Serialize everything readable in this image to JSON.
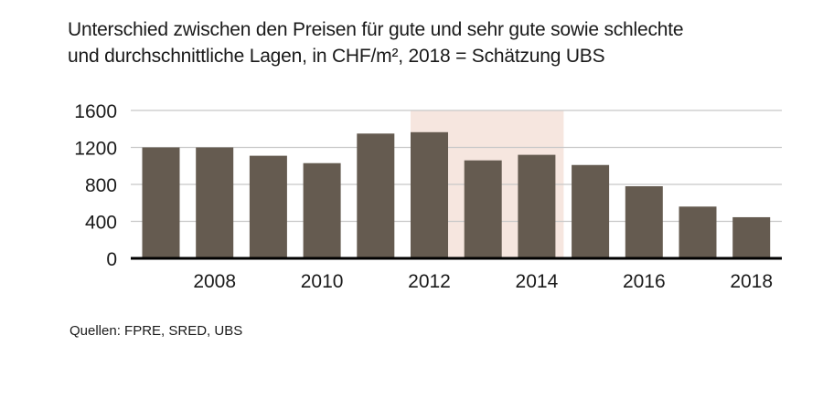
{
  "chart_data": {
    "type": "bar",
    "title_line1": "Unterschied zwischen den Preisen für gute und sehr gute sowie schlechte",
    "title_line2": "und durchschnittliche Lagen, in CHF/m², 2018 = Schätzung UBS",
    "categories": [
      "2007",
      "2008",
      "2009",
      "2010",
      "2011",
      "2012",
      "2013",
      "2014",
      "2015",
      "2016",
      "2017",
      "2018"
    ],
    "values": [
      1200,
      1200,
      1110,
      1030,
      1350,
      1365,
      1060,
      1120,
      1010,
      780,
      560,
      445
    ],
    "x_tick_labels": [
      "2008",
      "2010",
      "2012",
      "2014",
      "2016",
      "2018"
    ],
    "y_tick_labels": [
      "0",
      "400",
      "800",
      "1200",
      "1600"
    ],
    "ylim": [
      0,
      1600
    ],
    "grid": true,
    "shaded_range": [
      "2012",
      "2014"
    ],
    "colors": {
      "bar": "#655b50",
      "shade": "#f6e6df",
      "grid": "#c8c8c8",
      "axis": "#000000"
    }
  },
  "source": "Quellen: FPRE, SRED, UBS"
}
